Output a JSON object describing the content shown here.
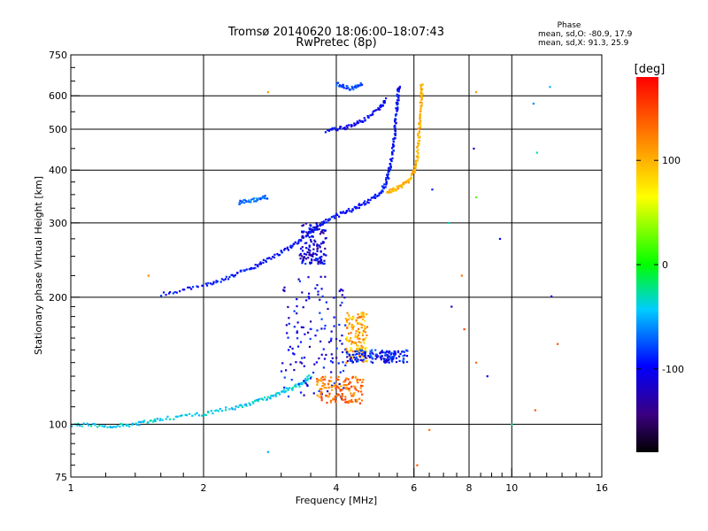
{
  "chart_data": {
    "type": "scatter",
    "title": "Tromsø 20140620 18:06:00–18:07:43",
    "subtitle": "RwPretec (8p)",
    "xlabel": "Frequency [MHz]",
    "ylabel": "Stationary phase Virtual Height [km]",
    "x_scale": "log",
    "y_scale": "log",
    "xlim": [
      1,
      16
    ],
    "ylim": [
      75,
      750
    ],
    "x_ticks": [
      1,
      2,
      4,
      6,
      8,
      10,
      16
    ],
    "x_tick_labels": [
      "1",
      "2",
      "4",
      "6",
      "8",
      "10",
      "16"
    ],
    "y_ticks": [
      75,
      100,
      200,
      300,
      400,
      500,
      600,
      750
    ],
    "y_tick_labels": [
      "75",
      "100",
      "200",
      "300",
      "400",
      "500",
      "600",
      "750"
    ],
    "grid": true,
    "colorbar": {
      "label": "[deg]",
      "range": [
        -180,
        180
      ],
      "ticks": [
        -100,
        0,
        100
      ],
      "tick_labels": [
        "-100",
        "0",
        "100"
      ]
    },
    "phase_box": {
      "title": "Phase",
      "line1": "mean, sd,O: -80.9, 17.9",
      "line2": "mean, sd,X:  91.3, 25.9"
    },
    "traces": [
      {
        "name": "",
        "phase": -40,
        "points": [
          [
            1.0,
            100
          ],
          [
            1.2,
            99
          ],
          [
            1.4,
            100
          ],
          [
            1.6,
            103
          ],
          [
            2.0,
            106
          ],
          [
            2.4,
            110
          ],
          [
            2.7,
            114
          ],
          [
            3.0,
            119
          ],
          [
            3.3,
            124
          ],
          [
            3.5,
            130
          ]
        ]
      },
      {
        "name": "",
        "phase": -95,
        "points": [
          [
            1.6,
            203
          ],
          [
            2.0,
            213
          ],
          [
            2.3,
            224
          ],
          [
            2.6,
            236
          ],
          [
            2.9,
            250
          ],
          [
            3.2,
            266
          ],
          [
            3.5,
            286
          ],
          [
            3.8,
            305
          ],
          [
            4.2,
            318
          ],
          [
            4.6,
            332
          ],
          [
            5.0,
            350
          ],
          [
            5.2,
            375
          ],
          [
            5.3,
            410
          ],
          [
            5.4,
            460
          ],
          [
            5.45,
            520
          ],
          [
            5.5,
            580
          ],
          [
            5.55,
            640
          ]
        ]
      },
      {
        "name": "",
        "phase": 100,
        "points": [
          [
            5.2,
            355
          ],
          [
            5.5,
            362
          ],
          [
            5.8,
            375
          ],
          [
            6.0,
            395
          ],
          [
            6.1,
            430
          ],
          [
            6.15,
            480
          ],
          [
            6.2,
            540
          ],
          [
            6.25,
            600
          ],
          [
            6.25,
            640
          ]
        ]
      },
      {
        "name": "",
        "phase": -100,
        "points": [
          [
            3.8,
            495
          ],
          [
            4.2,
            505
          ],
          [
            4.6,
            525
          ],
          [
            5.0,
            560
          ],
          [
            5.2,
            590
          ]
        ]
      },
      {
        "name": "",
        "phase": -80,
        "points": [
          [
            4.0,
            640
          ],
          [
            4.3,
            625
          ],
          [
            4.6,
            640
          ]
        ]
      },
      {
        "name": "",
        "phase": -70,
        "points": [
          [
            2.4,
            335
          ],
          [
            2.6,
            340
          ],
          [
            2.8,
            346
          ]
        ]
      }
    ],
    "clouds": [
      {
        "phase": -105,
        "x_range": [
          3.0,
          4.2
        ],
        "y_range": [
          115,
          225
        ]
      },
      {
        "phase": 130,
        "x_range": [
          3.6,
          4.6
        ],
        "y_range": [
          112,
          130
        ]
      },
      {
        "phase": 100,
        "x_range": [
          4.2,
          4.7
        ],
        "y_range": [
          140,
          185
        ]
      },
      {
        "phase": -95,
        "x_range": [
          4.2,
          5.8
        ],
        "y_range": [
          140,
          150
        ]
      },
      {
        "phase": -110,
        "x_range": [
          3.3,
          3.8
        ],
        "y_range": [
          240,
          300
        ]
      }
    ],
    "isolated_points": [
      {
        "x": 2.8,
        "y": 612,
        "phase": 110
      },
      {
        "x": 1.5,
        "y": 225,
        "phase": 120
      },
      {
        "x": 2.8,
        "y": 86,
        "phase": -50
      },
      {
        "x": 6.1,
        "y": 80,
        "phase": 140
      },
      {
        "x": 6.5,
        "y": 97,
        "phase": 130
      },
      {
        "x": 8.3,
        "y": 612,
        "phase": 110
      },
      {
        "x": 8.2,
        "y": 450,
        "phase": -120
      },
      {
        "x": 8.3,
        "y": 345,
        "phase": 20
      },
      {
        "x": 9.4,
        "y": 275,
        "phase": -100
      },
      {
        "x": 10.0,
        "y": 100,
        "phase": -20
      },
      {
        "x": 11.2,
        "y": 575,
        "phase": -60
      },
      {
        "x": 11.4,
        "y": 440,
        "phase": -30
      },
      {
        "x": 11.3,
        "y": 108,
        "phase": 140
      },
      {
        "x": 12.2,
        "y": 630,
        "phase": -50
      },
      {
        "x": 12.3,
        "y": 201,
        "phase": -110
      },
      {
        "x": 12.7,
        "y": 155,
        "phase": 140
      },
      {
        "x": 7.3,
        "y": 190,
        "phase": -120
      },
      {
        "x": 7.8,
        "y": 168,
        "phase": 150
      },
      {
        "x": 8.3,
        "y": 140,
        "phase": 130
      },
      {
        "x": 8.8,
        "y": 130,
        "phase": -100
      },
      {
        "x": 6.6,
        "y": 360,
        "phase": -90
      },
      {
        "x": 7.2,
        "y": 300,
        "phase": -30
      },
      {
        "x": 7.7,
        "y": 225,
        "phase": 130
      }
    ]
  }
}
